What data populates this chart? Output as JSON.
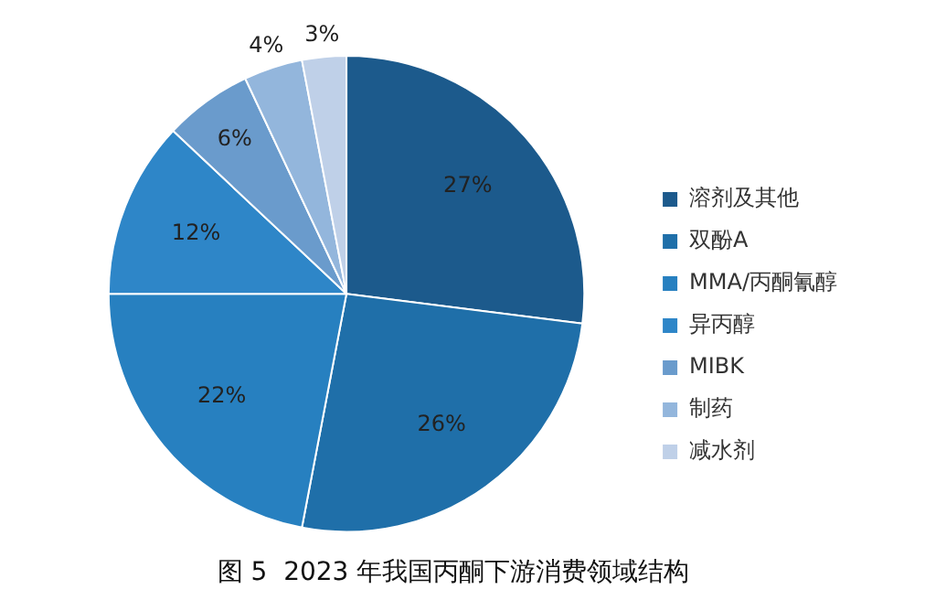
{
  "chart_data": {
    "type": "pie",
    "title": "图 5  2023 年我国丙酮下游消费领域结构",
    "categories": [
      "溶剂及其他",
      "双酚A",
      "MMA/丙酮氰醇",
      "异丙醇",
      "MIBK",
      "制药",
      "减水剂"
    ],
    "values": [
      27,
      26,
      22,
      12,
      6,
      4,
      3
    ],
    "colors": [
      "#1c5a8c",
      "#1f6fa9",
      "#2780c0",
      "#2e86c8",
      "#6a9bcc",
      "#93b6dc",
      "#bfd0e8"
    ],
    "value_labels": [
      "27%",
      "26%",
      "22%",
      "12%",
      "6%",
      "4%",
      "3%"
    ],
    "legend": "right"
  }
}
